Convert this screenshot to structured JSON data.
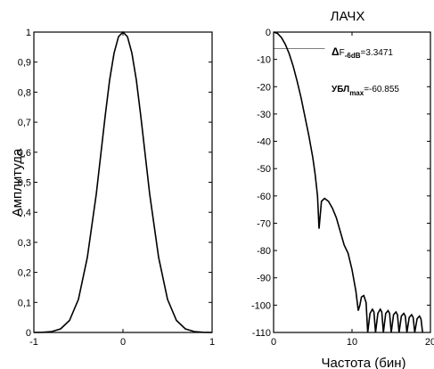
{
  "chart_data": [
    {
      "type": "line",
      "title": "",
      "xlabel": "",
      "ylabel": "Амплитуда",
      "xlim": [
        -1,
        1
      ],
      "ylim": [
        0,
        1
      ],
      "xticks": [
        -1,
        0,
        1
      ],
      "xtick_labels": [
        "-1",
        "0",
        "1"
      ],
      "yticks": [
        0,
        0.1,
        0.2,
        0.3,
        0.4,
        0.5,
        0.6,
        0.7,
        0.8,
        0.9,
        1
      ],
      "ytick_labels": [
        "0",
        "0,1",
        "0,2",
        "0,3",
        "0,4",
        "0,5",
        "0,6",
        "0,7",
        "0,8",
        "0,9",
        "1"
      ],
      "grid": false,
      "series": [
        {
          "x": [
            -1,
            -0.9,
            -0.8,
            -0.7,
            -0.6,
            -0.5,
            -0.4,
            -0.3,
            -0.25,
            -0.2,
            -0.15,
            -0.1,
            -0.05,
            0,
            0.05,
            0.1,
            0.15,
            0.2,
            0.25,
            0.3,
            0.4,
            0.5,
            0.6,
            0.7,
            0.8,
            0.9,
            1
          ],
          "y": [
            0,
            0.0005,
            0.003,
            0.012,
            0.04,
            0.11,
            0.25,
            0.46,
            0.59,
            0.72,
            0.84,
            0.93,
            0.985,
            1,
            0.985,
            0.93,
            0.84,
            0.72,
            0.59,
            0.46,
            0.25,
            0.11,
            0.04,
            0.012,
            0.003,
            0.0005,
            0
          ]
        }
      ]
    },
    {
      "type": "line",
      "title": "ЛАЧХ",
      "xlabel": "Частота (бин)",
      "ylabel": "",
      "xlim": [
        0,
        20
      ],
      "ylim": [
        -110,
        0
      ],
      "xticks": [
        0,
        10,
        20
      ],
      "xtick_labels": [
        "0",
        "10",
        "20"
      ],
      "yticks": [
        0,
        -10,
        -20,
        -30,
        -40,
        -50,
        -60,
        -70,
        -80,
        -90,
        -100,
        -110
      ],
      "ytick_labels": [
        "0",
        "-10",
        "-20",
        "-30",
        "-40",
        "-50",
        "-60",
        "-70",
        "-80",
        "-90",
        "-100",
        "-110"
      ],
      "grid": false,
      "reference_line": {
        "y": -6,
        "x_from": 0,
        "x_to": 3.3471
      },
      "annotations": [
        {
          "prefix": "Δ",
          "main": "F",
          "sub": "-6dB",
          "value": "=3.3471"
        },
        {
          "prefix": "",
          "main": "УБЛ",
          "sub": "max",
          "value": "=-60.855"
        }
      ],
      "series": [
        {
          "x": [
            0,
            0.5,
            1,
            1.5,
            2,
            2.5,
            3,
            3.5,
            4,
            4.5,
            5,
            5.3,
            5.6,
            5.8,
            6.1,
            6.5,
            7,
            7.5,
            8,
            8.5,
            9,
            9.5,
            10,
            10.5,
            10.8,
            11,
            11.2,
            11.5,
            11.8,
            12,
            12.3,
            12.6,
            12.8,
            13,
            13.3,
            13.6,
            13.8,
            14,
            14.3,
            14.6,
            14.8,
            15,
            15.3,
            15.6,
            15.8,
            16,
            16.3,
            16.6,
            16.8,
            17,
            17.3,
            17.6,
            17.8,
            18,
            18.3,
            18.6,
            18.8,
            19
          ],
          "y": [
            0,
            -0.5,
            -2,
            -4.5,
            -8,
            -12.5,
            -18,
            -24,
            -31,
            -38,
            -46,
            -52,
            -60,
            -72,
            -62,
            -60.9,
            -62,
            -64.5,
            -68,
            -73,
            -78,
            -81,
            -87,
            -95,
            -102,
            -100,
            -97,
            -96.5,
            -99,
            -110,
            -103,
            -101.5,
            -102.5,
            -110,
            -103,
            -101.5,
            -102.5,
            -110,
            -103,
            -102,
            -103,
            -110,
            -103.5,
            -102.5,
            -103.5,
            -110,
            -104,
            -103,
            -104,
            -110,
            -104.5,
            -103.5,
            -104.5,
            -110,
            -105,
            -104,
            -105,
            -110
          ]
        }
      ]
    }
  ]
}
